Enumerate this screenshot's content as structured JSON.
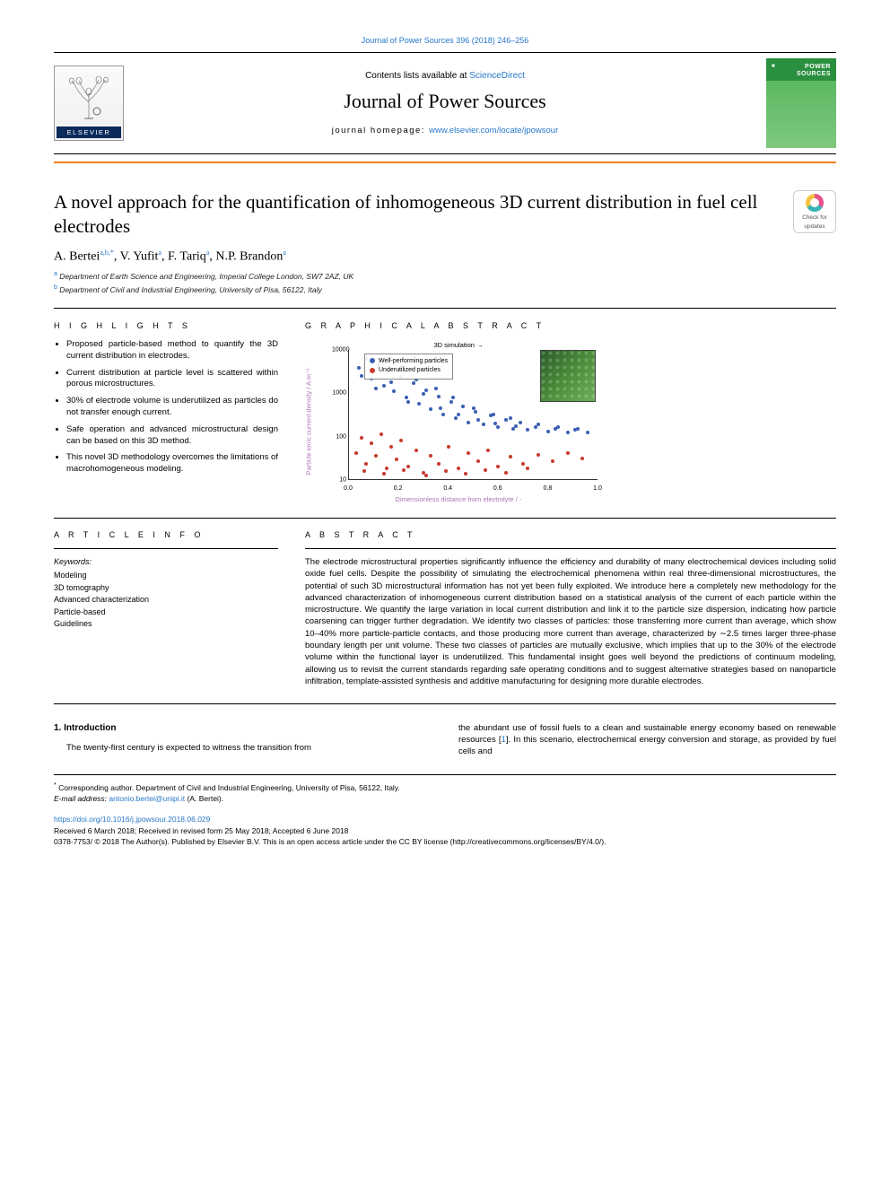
{
  "top_link": "Journal of Power Sources 396 (2018) 246–256",
  "header": {
    "contents_pre": "Contents lists available at ",
    "contents_link": "ScienceDirect",
    "journal_name": "Journal of Power Sources",
    "homepage_pre": "journal homepage: ",
    "homepage_url": "www.elsevier.com/locate/jpowsour",
    "elsevier": "ELSEVIER",
    "cover_label_line1": "POWER",
    "cover_label_line2": "SOURCES",
    "cover_pub": "■"
  },
  "updates_badge": {
    "line1": "Check for",
    "line2": "updates"
  },
  "title": "A novel approach for the quantification of inhomogeneous 3D current distribution in fuel cell electrodes",
  "authors_html": [
    "A. Bertei",
    "V. Yufit",
    "F. Tariq",
    "N.P. Brandon"
  ],
  "author_sups": [
    "a,b,*",
    "a",
    "a",
    "a"
  ],
  "affiliations": [
    {
      "sup": "a",
      "text": "Department of Earth Science and Engineering, Imperial College London, SW7 2AZ, UK"
    },
    {
      "sup": "b",
      "text": "Department of Civil and Industrial Engineering, University of Pisa, 56122, Italy"
    }
  ],
  "sections": {
    "highlights": "H I G H L I G H T S",
    "graphical": "G R A P H I C A L  A B S T R A C T",
    "article_info": "A R T I C L E  I N F O",
    "abstract": "A B S T R A C T"
  },
  "highlights": [
    "Proposed particle-based method to quantify the 3D current distribution in electrodes.",
    "Current distribution at particle level is scattered within porous microstructures.",
    "30% of electrode volume is underutilized as particles do not transfer enough current.",
    "Safe operation and advanced microstructural design can be based on this 3D method.",
    "This novel 3D methodology overcomes the limitations of macrohomogeneous modeling."
  ],
  "chart": {
    "type": "scatter-log",
    "title_top": "3D simulation →",
    "ylabel": "Particle ionic current density / A m⁻²",
    "xlabel": "Dimensionless distance from electrolyte / -",
    "legend": [
      {
        "label": "Well-performing particles",
        "color": "#3b5fb2"
      },
      {
        "label": "Underutilized particles",
        "color": "#c73a2d"
      }
    ],
    "yticks": [
      {
        "v": "10",
        "frac": 0.0
      },
      {
        "v": "100",
        "frac": 0.333
      },
      {
        "v": "1000",
        "frac": 0.666
      },
      {
        "v": "10000",
        "frac": 1.0
      }
    ],
    "xticks": [
      {
        "v": "0.0",
        "frac": 0.0
      },
      {
        "v": "0.2",
        "frac": 0.2
      },
      {
        "v": "0.4",
        "frac": 0.4
      },
      {
        "v": "0.6",
        "frac": 0.6
      },
      {
        "v": "0.8",
        "frac": 0.8
      },
      {
        "v": "1.0",
        "frac": 1.0
      }
    ],
    "points_blue_color": "#3b5fb2",
    "points_red_color": "#c73a2d",
    "points_blue": [
      [
        0.04,
        0.86
      ],
      [
        0.07,
        0.93
      ],
      [
        0.09,
        0.78
      ],
      [
        0.12,
        0.88
      ],
      [
        0.14,
        0.72
      ],
      [
        0.16,
        0.83
      ],
      [
        0.18,
        0.68
      ],
      [
        0.21,
        0.79
      ],
      [
        0.23,
        0.63
      ],
      [
        0.26,
        0.74
      ],
      [
        0.28,
        0.58
      ],
      [
        0.31,
        0.69
      ],
      [
        0.33,
        0.54
      ],
      [
        0.36,
        0.64
      ],
      [
        0.38,
        0.5
      ],
      [
        0.41,
        0.6
      ],
      [
        0.43,
        0.47
      ],
      [
        0.46,
        0.56
      ],
      [
        0.48,
        0.44
      ],
      [
        0.51,
        0.52
      ],
      [
        0.54,
        0.42
      ],
      [
        0.57,
        0.49
      ],
      [
        0.6,
        0.4
      ],
      [
        0.63,
        0.46
      ],
      [
        0.66,
        0.39
      ],
      [
        0.69,
        0.44
      ],
      [
        0.72,
        0.38
      ],
      [
        0.76,
        0.42
      ],
      [
        0.8,
        0.37
      ],
      [
        0.84,
        0.4
      ],
      [
        0.88,
        0.36
      ],
      [
        0.92,
        0.39
      ],
      [
        0.96,
        0.36
      ],
      [
        0.05,
        0.8
      ],
      [
        0.11,
        0.7
      ],
      [
        0.17,
        0.75
      ],
      [
        0.24,
        0.6
      ],
      [
        0.3,
        0.66
      ],
      [
        0.37,
        0.55
      ],
      [
        0.44,
        0.5
      ],
      [
        0.52,
        0.46
      ],
      [
        0.59,
        0.43
      ],
      [
        0.67,
        0.41
      ],
      [
        0.75,
        0.4
      ],
      [
        0.83,
        0.39
      ],
      [
        0.91,
        0.38
      ],
      [
        0.13,
        0.92
      ],
      [
        0.2,
        0.85
      ],
      [
        0.27,
        0.77
      ],
      [
        0.35,
        0.7
      ],
      [
        0.42,
        0.63
      ],
      [
        0.5,
        0.55
      ],
      [
        0.58,
        0.5
      ],
      [
        0.65,
        0.47
      ]
    ],
    "points_red": [
      [
        0.03,
        0.2
      ],
      [
        0.05,
        0.32
      ],
      [
        0.07,
        0.12
      ],
      [
        0.09,
        0.28
      ],
      [
        0.11,
        0.18
      ],
      [
        0.13,
        0.35
      ],
      [
        0.15,
        0.08
      ],
      [
        0.17,
        0.25
      ],
      [
        0.19,
        0.15
      ],
      [
        0.21,
        0.3
      ],
      [
        0.24,
        0.1
      ],
      [
        0.27,
        0.22
      ],
      [
        0.3,
        0.05
      ],
      [
        0.33,
        0.18
      ],
      [
        0.36,
        0.12
      ],
      [
        0.4,
        0.25
      ],
      [
        0.44,
        0.08
      ],
      [
        0.48,
        0.2
      ],
      [
        0.52,
        0.14
      ],
      [
        0.56,
        0.22
      ],
      [
        0.6,
        0.1
      ],
      [
        0.65,
        0.17
      ],
      [
        0.7,
        0.12
      ],
      [
        0.76,
        0.19
      ],
      [
        0.82,
        0.14
      ],
      [
        0.88,
        0.2
      ],
      [
        0.94,
        0.16
      ],
      [
        0.06,
        0.06
      ],
      [
        0.14,
        0.04
      ],
      [
        0.22,
        0.07
      ],
      [
        0.31,
        0.03
      ],
      [
        0.39,
        0.06
      ],
      [
        0.47,
        0.04
      ],
      [
        0.55,
        0.07
      ],
      [
        0.63,
        0.05
      ],
      [
        0.72,
        0.08
      ]
    ]
  },
  "keywords_head": "Keywords:",
  "keywords": [
    "Modeling",
    "3D tomography",
    "Advanced characterization",
    "Particle-based",
    "Guidelines"
  ],
  "abstract": "The electrode microstructural properties significantly influence the efficiency and durability of many electrochemical devices including solid oxide fuel cells. Despite the possibility of simulating the electrochemical phenomena within real three-dimensional microstructures, the potential of such 3D microstructural information has not yet been fully exploited. We introduce here a completely new methodology for the advanced characterization of inhomogeneous current distribution based on a statistical analysis of the current of each particle within the microstructure. We quantify the large variation in local current distribution and link it to the particle size dispersion, indicating how particle coarsening can trigger further degradation. We identify two classes of particles: those transferring more current than average, which show 10–40% more particle-particle contacts, and those producing more current than average, characterized by ∼2.5 times larger three-phase boundary length per unit volume. These two classes of particles are mutually exclusive, which implies that up to the 30% of the electrode volume within the functional layer is underutilized. This fundamental insight goes well beyond the predictions of continuum modeling, allowing us to revisit the current standards regarding safe operating conditions and to suggest alternative strategies based on nanoparticle infiltration, template-assisted synthesis and additive manufacturing for designing more durable electrodes.",
  "intro_head": "1. Introduction",
  "intro_left": "The twenty-first century is expected to witness the transition from",
  "intro_right_pre": "the abundant use of fossil fuels to a clean and sustainable energy economy based on renewable resources [",
  "intro_right_link": "1",
  "intro_right_post": "]. In this scenario, electrochemical energy conversion and storage, as provided by fuel cells and",
  "footnotes": {
    "corr_star": "*",
    "corr": " Corresponding author. Department of Civil and Industrial Engineering, University of Pisa, 56122, Italy.",
    "email_pre": "E-mail address: ",
    "email": "antonio.bertei@unipi.it",
    "email_post": " (A. Bertei).",
    "doi": "https://doi.org/10.1016/j.jpowsour.2018.06.029",
    "received": "Received 6 March 2018; Received in revised form 25 May 2018; Accepted 6 June 2018",
    "copyright": "0378-7753/ © 2018 The Author(s). Published by Elsevier B.V. This is an open access article under the CC BY license (http://creativecommons.org/licenses/BY/4.0/)."
  }
}
